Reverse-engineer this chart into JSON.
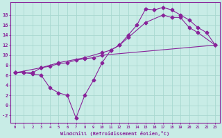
{
  "xlabel": "Windchill (Refroidissement éolien,°C)",
  "xlim": [
    -0.5,
    23.5
  ],
  "ylim": [
    -3.5,
    20.5
  ],
  "xtick_vals": [
    0,
    1,
    2,
    3,
    4,
    5,
    6,
    7,
    8,
    9,
    10,
    11,
    12,
    13,
    14,
    15,
    16,
    17,
    18,
    19,
    20,
    21,
    22,
    23
  ],
  "ytick_vals": [
    -2,
    0,
    2,
    4,
    6,
    8,
    10,
    12,
    14,
    16,
    18
  ],
  "bg_color": "#c8ece6",
  "grid_color": "#a8d8d0",
  "line_color": "#882299",
  "line1_x": [
    0,
    1,
    2,
    3,
    4,
    5,
    6,
    7,
    8,
    9,
    10,
    11,
    12,
    13,
    14,
    15,
    16,
    17,
    18,
    19,
    20,
    21,
    22,
    23
  ],
  "line1_y": [
    6.5,
    6.5,
    6.3,
    6.0,
    3.5,
    2.5,
    2.0,
    -2.5,
    2.0,
    5.0,
    8.5,
    11.0,
    12.0,
    14.0,
    16.0,
    19.2,
    19.0,
    19.5,
    19.0,
    18.0,
    17.0,
    15.5,
    14.5,
    12.0
  ],
  "line2_x": [
    0,
    1,
    2,
    3,
    4,
    5,
    6,
    7,
    8,
    9,
    10,
    23
  ],
  "line2_y": [
    6.5,
    6.5,
    6.5,
    7.5,
    7.8,
    8.3,
    8.5,
    9.0,
    9.3,
    9.5,
    10.0,
    12.0
  ],
  "line3_x": [
    0,
    3,
    5,
    8,
    10,
    11,
    12,
    13,
    15,
    17,
    18,
    19,
    20,
    21,
    23
  ],
  "line3_y": [
    6.5,
    7.5,
    8.5,
    9.5,
    10.5,
    11.0,
    12.0,
    13.5,
    16.5,
    18.0,
    17.5,
    17.5,
    15.5,
    14.5,
    12.0
  ]
}
